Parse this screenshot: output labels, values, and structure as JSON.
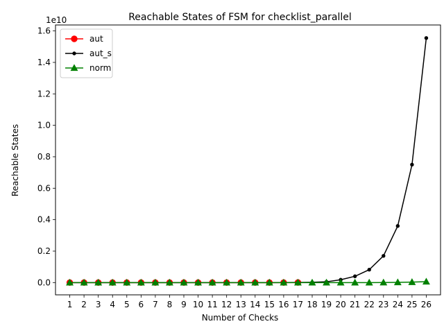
{
  "chart_data": {
    "type": "line",
    "title": "Reachable States of FSM for checklist_parallel",
    "xlabel": "Number of Checks",
    "ylabel": "Reachable States",
    "y_offset_label": "1e10",
    "x": [
      1,
      2,
      3,
      4,
      5,
      6,
      7,
      8,
      9,
      10,
      11,
      12,
      13,
      14,
      15,
      16,
      17,
      18,
      19,
      20,
      21,
      22,
      23,
      24,
      25,
      26
    ],
    "x_tick_labels": [
      "1",
      "2",
      "3",
      "4",
      "5",
      "6",
      "7",
      "8",
      "9",
      "10",
      "11",
      "12",
      "13",
      "14",
      "15",
      "16",
      "17",
      "18",
      "19",
      "20",
      "21",
      "22",
      "23",
      "24",
      "25",
      "26"
    ],
    "y_ticks": [
      0,
      0.2,
      0.4,
      0.6,
      0.8,
      1.0,
      1.2,
      1.4,
      1.6
    ],
    "y_tick_labels": [
      "0.0",
      "0.2",
      "0.4",
      "0.6",
      "0.8",
      "1.0",
      "1.2",
      "1.4",
      "1.6"
    ],
    "y_scale_factor": 10000000000.0,
    "ylim": [
      -0.078,
      1.638
    ],
    "xlim": [
      0,
      27
    ],
    "grid": false,
    "legend_position": "top-left",
    "series": [
      {
        "name": "aut",
        "color": "#ff0000",
        "marker": "circle-large",
        "x": [
          1,
          2,
          3,
          4,
          5,
          6,
          7,
          8,
          9,
          10,
          11,
          12,
          13,
          14,
          15,
          16,
          17
        ],
        "values": [
          0,
          0,
          0,
          0,
          0,
          0,
          0,
          0,
          0,
          0,
          0,
          0,
          0,
          0,
          0,
          0,
          0.0005
        ]
      },
      {
        "name": "aut_s",
        "color": "#000000",
        "marker": "dot",
        "x": [
          1,
          2,
          3,
          4,
          5,
          6,
          7,
          8,
          9,
          10,
          11,
          12,
          13,
          14,
          15,
          16,
          17,
          18,
          19,
          20,
          21,
          22,
          23,
          24,
          25,
          26
        ],
        "values": [
          0,
          0,
          0,
          0,
          0,
          0,
          0,
          0,
          0,
          0,
          0,
          0,
          0,
          0,
          0,
          0.0003,
          0.0008,
          0.002,
          0.005,
          0.018,
          0.04,
          0.082,
          0.17,
          0.36,
          0.75,
          1.555
        ]
      },
      {
        "name": "norm",
        "color": "#008000",
        "marker": "triangle",
        "x": [
          1,
          2,
          3,
          4,
          5,
          6,
          7,
          8,
          9,
          10,
          11,
          12,
          13,
          14,
          15,
          16,
          17,
          18,
          19,
          20,
          21,
          22,
          23,
          24,
          25,
          26
        ],
        "values": [
          0,
          0,
          0,
          0,
          0,
          0,
          0,
          0,
          0,
          0,
          0,
          0,
          0,
          0,
          0,
          0,
          0,
          0,
          0,
          0,
          0,
          0,
          0.0005,
          0.0015,
          0.003,
          0.006
        ]
      }
    ]
  }
}
